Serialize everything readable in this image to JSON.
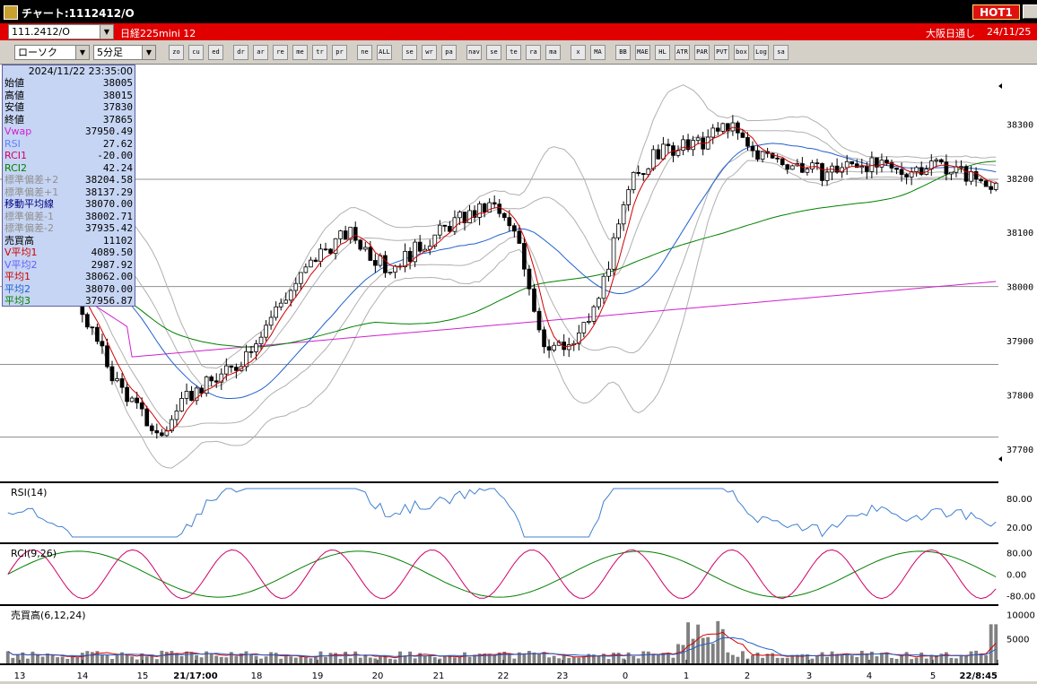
{
  "window": {
    "title": "チャート:1112412/O",
    "hot_label": "HOT1",
    "buttons": [
      "_",
      "□",
      "x"
    ]
  },
  "infobar": {
    "symbol": "111.2412/O",
    "name": "日経225mini 12",
    "market": "大阪日通し",
    "date": "24/11/25"
  },
  "selectors": {
    "chart_type": "ローソク",
    "timeframe": "5分足"
  },
  "toolbar": {
    "tools": [
      "zoom",
      "cursor",
      "edit",
      "draw",
      "arrow",
      "refresh",
      "memo",
      "trash",
      "prev",
      "next",
      "ALL",
      "settings",
      "wrench",
      "palette",
      "nav",
      "search",
      "tech",
      "ratio",
      "mark",
      "x",
      "MA",
      "BB",
      "MAE",
      "HL",
      "ATR",
      "PAR",
      "PVT",
      "box",
      "Log",
      "save"
    ]
  },
  "infobox": {
    "datetime": "2024/11/22  23:35:00",
    "rows": [
      {
        "label": "始値",
        "value": "38005",
        "color": "#000000"
      },
      {
        "label": "高値",
        "value": "38015",
        "color": "#000000"
      },
      {
        "label": "安値",
        "value": "37830",
        "color": "#000000"
      },
      {
        "label": "終値",
        "value": "37865",
        "color": "#000000"
      },
      {
        "label": "Vwap",
        "value": "37950.49",
        "color": "#d020d0"
      },
      {
        "label": "RSI",
        "value": "27.62",
        "color": "#6080ff"
      },
      {
        "label": "RCI1",
        "value": "-20.00",
        "color": "#d0006a"
      },
      {
        "label": "RCI2",
        "value": "42.24",
        "color": "#008000"
      },
      {
        "label": "標準偏差+2",
        "value": "38204.58",
        "color": "#909090"
      },
      {
        "label": "標準偏差+1",
        "value": "38137.29",
        "color": "#909090"
      },
      {
        "label": "移動平均線",
        "value": "38070.00",
        "color": "#000080"
      },
      {
        "label": "標準偏差-1",
        "value": "38002.71",
        "color": "#909090"
      },
      {
        "label": "標準偏差-2",
        "value": "37935.42",
        "color": "#909090"
      },
      {
        "label": "売買高",
        "value": "11102",
        "color": "#000000"
      },
      {
        "label": "V平均1",
        "value": "4089.50",
        "color": "#d00000"
      },
      {
        "label": "V平均2",
        "value": "2987.92",
        "color": "#6060ff"
      },
      {
        "label": "平均1",
        "value": "38062.00",
        "color": "#d00000"
      },
      {
        "label": "平均2",
        "value": "38070.00",
        "color": "#2060d0"
      },
      {
        "label": "平均3",
        "value": "37956.87",
        "color": "#008000"
      }
    ]
  },
  "chart_data": [
    {
      "type": "candlestick",
      "yticks": [
        37700,
        37800,
        37900,
        38000,
        38100,
        38200,
        38300
      ],
      "ylim": [
        37640,
        38400
      ],
      "hlines": [
        38198,
        38000,
        37856,
        37722
      ],
      "seed": 1234
    },
    {
      "type": "line",
      "title": "RSI(14)",
      "yticks": [
        "80.00",
        "20.00"
      ]
    },
    {
      "type": "line",
      "title": "RCI(9,26)",
      "yticks": [
        "80.00",
        "0.00",
        "-80.00"
      ]
    },
    {
      "type": "bar",
      "title": "売買高(6,12,24)",
      "yticks": [
        "10000",
        "5000"
      ]
    }
  ],
  "xaxis": {
    "labels": [
      "13",
      "14",
      "15",
      "21/17:00",
      "18",
      "19",
      "20",
      "21",
      "22",
      "23",
      "0",
      "1",
      "2",
      "3",
      "4",
      "5",
      "22/8:45"
    ]
  },
  "colors": {
    "price": "#000000",
    "ma1": "#d00000",
    "ma2": "#2060d0",
    "ma3": "#008000",
    "vwap": "#d020d0",
    "bands": "#b0b0b0",
    "rsi": "#4080d0",
    "rci1": "#d0006a",
    "rci2": "#008000",
    "volume": "#808080"
  }
}
